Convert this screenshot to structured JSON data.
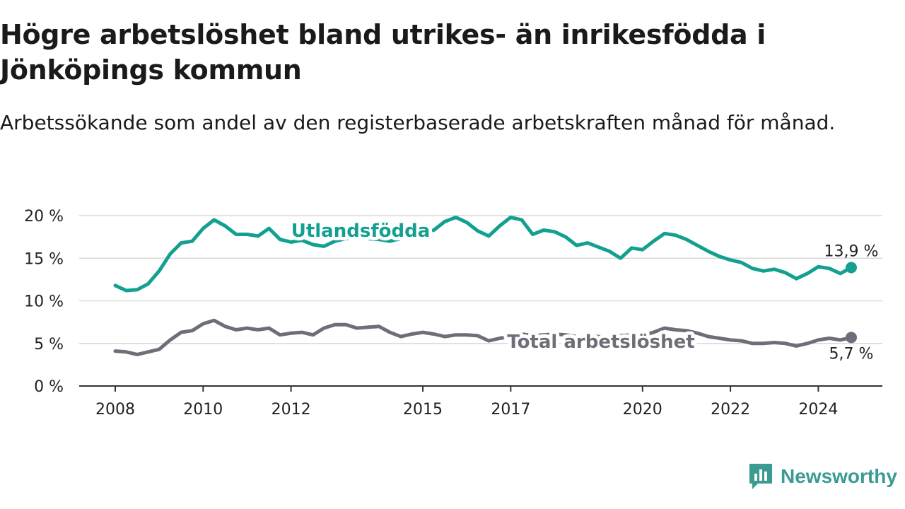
{
  "title": "Högre arbetslöshet bland utrikes- än inrikesfödda i Jönköpings kommun",
  "subtitle": "Arbetssökande som andel av den registerbaserade arbetskraften månad för månad.",
  "brand": "Newsworthy",
  "colors": {
    "utlandsfodda": "#13a090",
    "total": "#6e6e78",
    "grid": "#d9d9d9",
    "axis": "#333333"
  },
  "chart_data": {
    "type": "line",
    "title": "Högre arbetslöshet bland utrikes- än inrikesfödda i Jönköpings kommun",
    "subtitle": "Arbetssökande som andel av den registerbaserade arbetskraften månad för månad.",
    "xlabel": "",
    "ylabel": "",
    "x_range": [
      "2008-01",
      "2025-01"
    ],
    "x_ticks": [
      "2008",
      "2010",
      "2012",
      "2015",
      "2017",
      "2020",
      "2022",
      "2024"
    ],
    "y_ticks": [
      "0 %",
      "5 %",
      "10 %",
      "15 %",
      "20 %"
    ],
    "ylim": [
      0,
      20
    ],
    "grid": true,
    "series": [
      {
        "name": "Utlandsfödda",
        "end_label": "13,9 %",
        "points": [
          [
            "2008-01",
            11.8
          ],
          [
            "2008-04",
            11.2
          ],
          [
            "2008-07",
            11.3
          ],
          [
            "2008-10",
            12.0
          ],
          [
            "2009-01",
            13.5
          ],
          [
            "2009-04",
            15.5
          ],
          [
            "2009-07",
            16.8
          ],
          [
            "2009-10",
            17.0
          ],
          [
            "2010-01",
            18.5
          ],
          [
            "2010-04",
            19.5
          ],
          [
            "2010-07",
            18.8
          ],
          [
            "2010-10",
            17.8
          ],
          [
            "2011-01",
            17.8
          ],
          [
            "2011-04",
            17.6
          ],
          [
            "2011-07",
            18.5
          ],
          [
            "2011-10",
            17.2
          ],
          [
            "2012-01",
            16.9
          ],
          [
            "2012-04",
            17.1
          ],
          [
            "2012-07",
            16.6
          ],
          [
            "2012-10",
            16.4
          ],
          [
            "2013-01",
            17.0
          ],
          [
            "2013-04",
            17.3
          ],
          [
            "2013-07",
            17.5
          ],
          [
            "2013-10",
            17.3
          ],
          [
            "2014-01",
            17.2
          ],
          [
            "2014-04",
            17.0
          ],
          [
            "2014-07",
            17.3
          ],
          [
            "2014-10",
            17.8
          ],
          [
            "2015-01",
            18.0
          ],
          [
            "2015-04",
            18.3
          ],
          [
            "2015-07",
            19.3
          ],
          [
            "2015-10",
            19.8
          ],
          [
            "2016-01",
            19.2
          ],
          [
            "2016-04",
            18.2
          ],
          [
            "2016-07",
            17.6
          ],
          [
            "2016-10",
            18.8
          ],
          [
            "2017-01",
            19.8
          ],
          [
            "2017-04",
            19.5
          ],
          [
            "2017-07",
            17.8
          ],
          [
            "2017-10",
            18.3
          ],
          [
            "2018-01",
            18.1
          ],
          [
            "2018-04",
            17.5
          ],
          [
            "2018-07",
            16.5
          ],
          [
            "2018-10",
            16.8
          ],
          [
            "2019-01",
            16.3
          ],
          [
            "2019-04",
            15.8
          ],
          [
            "2019-07",
            15.0
          ],
          [
            "2019-10",
            16.2
          ],
          [
            "2020-01",
            16.0
          ],
          [
            "2020-04",
            17.0
          ],
          [
            "2020-07",
            17.9
          ],
          [
            "2020-10",
            17.7
          ],
          [
            "2021-01",
            17.2
          ],
          [
            "2021-04",
            16.5
          ],
          [
            "2021-07",
            15.8
          ],
          [
            "2021-10",
            15.2
          ],
          [
            "2022-01",
            14.8
          ],
          [
            "2022-04",
            14.5
          ],
          [
            "2022-07",
            13.8
          ],
          [
            "2022-10",
            13.5
          ],
          [
            "2023-01",
            13.7
          ],
          [
            "2023-04",
            13.3
          ],
          [
            "2023-07",
            12.6
          ],
          [
            "2023-10",
            13.2
          ],
          [
            "2024-01",
            14.0
          ],
          [
            "2024-04",
            13.8
          ],
          [
            "2024-07",
            13.2
          ],
          [
            "2024-10",
            13.9
          ]
        ]
      },
      {
        "name": "Total arbetslöshet",
        "end_label": "5,7 %",
        "points": [
          [
            "2008-01",
            4.1
          ],
          [
            "2008-04",
            4.0
          ],
          [
            "2008-07",
            3.7
          ],
          [
            "2008-10",
            4.0
          ],
          [
            "2009-01",
            4.3
          ],
          [
            "2009-04",
            5.4
          ],
          [
            "2009-07",
            6.3
          ],
          [
            "2009-10",
            6.5
          ],
          [
            "2010-01",
            7.3
          ],
          [
            "2010-04",
            7.7
          ],
          [
            "2010-07",
            7.0
          ],
          [
            "2010-10",
            6.6
          ],
          [
            "2011-01",
            6.8
          ],
          [
            "2011-04",
            6.6
          ],
          [
            "2011-07",
            6.8
          ],
          [
            "2011-10",
            6.0
          ],
          [
            "2012-01",
            6.2
          ],
          [
            "2012-04",
            6.3
          ],
          [
            "2012-07",
            6.0
          ],
          [
            "2012-10",
            6.8
          ],
          [
            "2013-01",
            7.2
          ],
          [
            "2013-04",
            7.2
          ],
          [
            "2013-07",
            6.8
          ],
          [
            "2013-10",
            6.9
          ],
          [
            "2014-01",
            7.0
          ],
          [
            "2014-04",
            6.3
          ],
          [
            "2014-07",
            5.8
          ],
          [
            "2014-10",
            6.1
          ],
          [
            "2015-01",
            6.3
          ],
          [
            "2015-04",
            6.1
          ],
          [
            "2015-07",
            5.8
          ],
          [
            "2015-10",
            6.0
          ],
          [
            "2016-01",
            6.0
          ],
          [
            "2016-04",
            5.9
          ],
          [
            "2016-07",
            5.3
          ],
          [
            "2016-10",
            5.6
          ],
          [
            "2017-01",
            5.8
          ],
          [
            "2017-04",
            6.1
          ],
          [
            "2017-07",
            5.9
          ],
          [
            "2017-10",
            6.0
          ],
          [
            "2018-01",
            6.1
          ],
          [
            "2018-04",
            6.0
          ],
          [
            "2018-07",
            5.8
          ],
          [
            "2018-10",
            5.9
          ],
          [
            "2019-01",
            5.8
          ],
          [
            "2019-04",
            5.7
          ],
          [
            "2019-07",
            5.9
          ],
          [
            "2019-10",
            6.0
          ],
          [
            "2020-01",
            5.9
          ],
          [
            "2020-04",
            6.3
          ],
          [
            "2020-07",
            6.8
          ],
          [
            "2020-10",
            6.6
          ],
          [
            "2021-01",
            6.5
          ],
          [
            "2021-04",
            6.2
          ],
          [
            "2021-07",
            5.8
          ],
          [
            "2021-10",
            5.6
          ],
          [
            "2022-01",
            5.4
          ],
          [
            "2022-04",
            5.3
          ],
          [
            "2022-07",
            5.0
          ],
          [
            "2022-10",
            5.0
          ],
          [
            "2023-01",
            5.1
          ],
          [
            "2023-04",
            5.0
          ],
          [
            "2023-07",
            4.7
          ],
          [
            "2023-10",
            5.0
          ],
          [
            "2024-01",
            5.4
          ],
          [
            "2024-04",
            5.6
          ],
          [
            "2024-07",
            5.4
          ],
          [
            "2024-10",
            5.7
          ]
        ]
      }
    ]
  }
}
